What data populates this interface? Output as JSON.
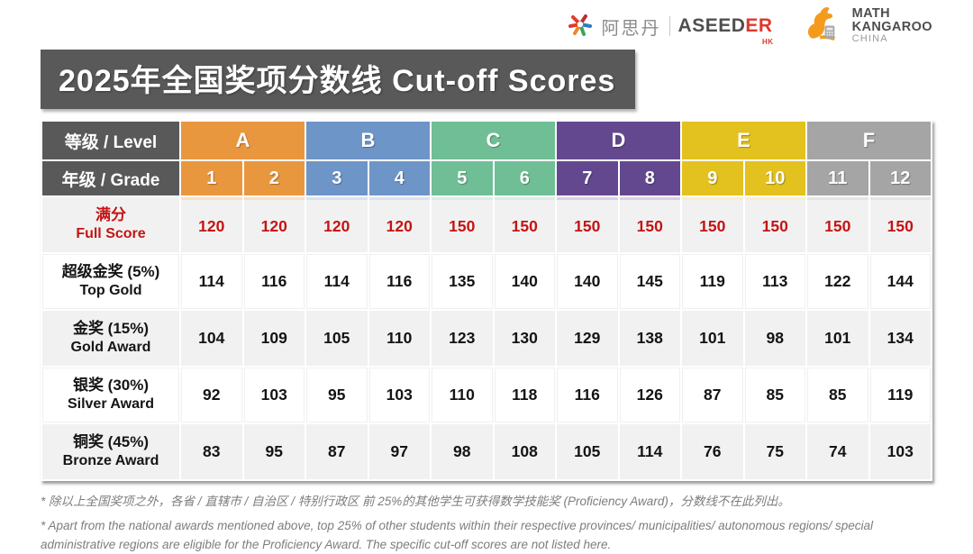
{
  "logos": {
    "aseeder": {
      "cn_name": "阿思丹",
      "en_name_dark": "ASEED",
      "en_name_red": "ER",
      "region": "HK"
    },
    "math_kangaroo": {
      "line1": "MATH",
      "line2": "KANGAROO",
      "line3": "CHINA"
    }
  },
  "title_banner": "2025年全国奖项分数线 Cut-off Scores",
  "colors": {
    "banner_bg": "#595959",
    "full_score_red": "#C41414",
    "row_alt_bg": "#F1F1F1",
    "header_dark": "#595959"
  },
  "table": {
    "level_header_label": "等级 / Level",
    "grade_header_label": "年级 / Grade",
    "levels": [
      {
        "name": "A",
        "grades": [
          "1",
          "2"
        ],
        "color": "#E9973E",
        "tint": "#F8DFBE"
      },
      {
        "name": "B",
        "grades": [
          "3",
          "4"
        ],
        "color": "#6D95C7",
        "tint": "#D8E2F0"
      },
      {
        "name": "C",
        "grades": [
          "5",
          "6"
        ],
        "color": "#6FBE95",
        "tint": "#D9EEE3"
      },
      {
        "name": "D",
        "grades": [
          "7",
          "8"
        ],
        "color": "#64488F",
        "tint": "#D8D0E5"
      },
      {
        "name": "E",
        "grades": [
          "9",
          "10"
        ],
        "color": "#E3C11F",
        "tint": "#F7F0C5"
      },
      {
        "name": "F",
        "grades": [
          "11",
          "12"
        ],
        "color": "#A5A5A5",
        "tint": "#E5E5E5"
      }
    ],
    "rows": [
      {
        "label_cn": "满分",
        "label_en": "Full Score",
        "red": true,
        "values": [
          120,
          120,
          120,
          120,
          150,
          150,
          150,
          150,
          150,
          150,
          150,
          150
        ]
      },
      {
        "label_cn": "超级金奖 (5%)",
        "label_en": "Top Gold",
        "red": false,
        "values": [
          114,
          116,
          114,
          116,
          135,
          140,
          140,
          145,
          119,
          113,
          122,
          144
        ]
      },
      {
        "label_cn": "金奖 (15%)",
        "label_en": "Gold Award",
        "red": false,
        "values": [
          104,
          109,
          105,
          110,
          123,
          130,
          129,
          138,
          101,
          98,
          101,
          134
        ]
      },
      {
        "label_cn": "银奖 (30%)",
        "label_en": "Silver Award",
        "red": false,
        "values": [
          92,
          103,
          95,
          103,
          110,
          118,
          116,
          126,
          87,
          85,
          85,
          119
        ]
      },
      {
        "label_cn": "铜奖 (45%)",
        "label_en": "Bronze Award",
        "red": false,
        "values": [
          83,
          95,
          87,
          97,
          98,
          108,
          105,
          114,
          76,
          75,
          74,
          103
        ]
      }
    ]
  },
  "notes": {
    "cn": "* 除以上全国奖项之外，各省 / 直辖市 / 自治区 / 特别行政区 前 25%的其他学生可获得数学技能奖 (Proficiency Award)，分数线不在此列出。",
    "en": "* Apart from the national awards mentioned above, top 25% of other students within their respective provinces/ municipalities/ autonomous regions/ special administrative regions are eligible for the Proficiency Award. The specific cut-off scores are not listed here."
  },
  "chart_data": {
    "type": "table",
    "title": "2025年全国奖项分数线 Cut-off Scores",
    "column_groups": [
      {
        "level": "A",
        "grades": [
          1,
          2
        ]
      },
      {
        "level": "B",
        "grades": [
          3,
          4
        ]
      },
      {
        "level": "C",
        "grades": [
          5,
          6
        ]
      },
      {
        "level": "D",
        "grades": [
          7,
          8
        ]
      },
      {
        "level": "E",
        "grades": [
          9,
          10
        ]
      },
      {
        "level": "F",
        "grades": [
          11,
          12
        ]
      }
    ],
    "columns": [
      "1",
      "2",
      "3",
      "4",
      "5",
      "6",
      "7",
      "8",
      "9",
      "10",
      "11",
      "12"
    ],
    "series": [
      {
        "name": "满分 Full Score",
        "values": [
          120,
          120,
          120,
          120,
          150,
          150,
          150,
          150,
          150,
          150,
          150,
          150
        ]
      },
      {
        "name": "超级金奖 (5%) Top Gold",
        "values": [
          114,
          116,
          114,
          116,
          135,
          140,
          140,
          145,
          119,
          113,
          122,
          144
        ]
      },
      {
        "name": "金奖 (15%) Gold Award",
        "values": [
          104,
          109,
          105,
          110,
          123,
          130,
          129,
          138,
          101,
          98,
          101,
          134
        ]
      },
      {
        "name": "银奖 (30%) Silver Award",
        "values": [
          92,
          103,
          95,
          103,
          110,
          118,
          116,
          126,
          87,
          85,
          85,
          119
        ]
      },
      {
        "name": "铜奖 (45%) Bronze Award",
        "values": [
          83,
          95,
          87,
          97,
          98,
          108,
          105,
          114,
          76,
          75,
          74,
          103
        ]
      }
    ]
  }
}
